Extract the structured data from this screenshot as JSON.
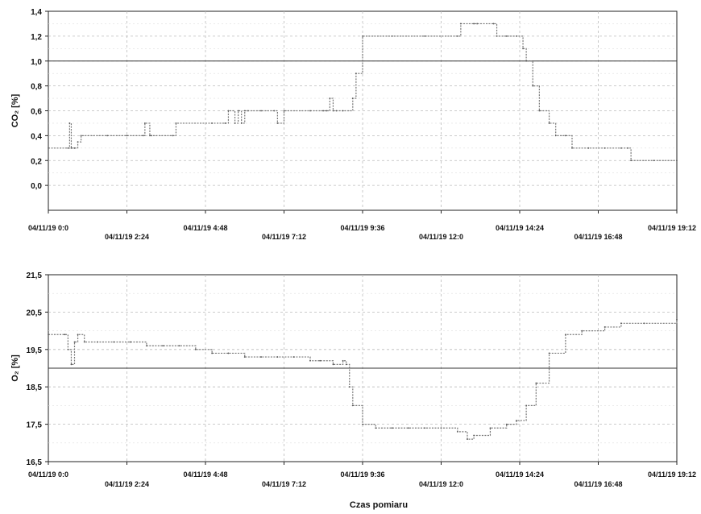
{
  "chart_data": [
    {
      "type": "line",
      "ylabel": "CO₂ [%]",
      "xlabel": "",
      "ylim": [
        -0.2,
        1.4
      ],
      "yticks": [
        "1,4",
        "1,2",
        "1,0",
        "0,8",
        "0,6",
        "0,4",
        "0,2",
        "0,0"
      ],
      "ytick_values": [
        1.4,
        1.2,
        1.0,
        0.8,
        0.6,
        0.4,
        0.2,
        0.0
      ],
      "xticks": [
        "04/11/19 0:0",
        "04/11/19 2:24",
        "04/11/19 4:48",
        "04/11/19 7:12",
        "04/11/19 9:36",
        "04/11/19 12:0",
        "04/11/19 14:24",
        "04/11/19 16:48",
        "04/11/19 19:12"
      ],
      "xlim_hours": [
        0,
        19.2
      ],
      "grid": true,
      "reference_line": 1.0,
      "series_color": "#777777",
      "x": [
        0.0,
        0.6,
        0.65,
        0.7,
        0.8,
        0.9,
        1.0,
        1.8,
        2.4,
        2.9,
        2.95,
        3.1,
        3.15,
        3.8,
        3.9,
        5.0,
        5.4,
        5.5,
        5.7,
        5.8,
        5.9,
        6.0,
        6.1,
        6.5,
        6.9,
        7.0,
        7.2,
        8.0,
        8.4,
        8.5,
        8.6,
        8.7,
        8.8,
        9.0,
        9.3,
        9.4,
        9.6,
        10.5,
        11.5,
        12.5,
        12.6,
        13.0,
        13.1,
        13.6,
        13.7,
        14.0,
        14.3,
        14.5,
        14.6,
        14.8,
        15.0,
        15.3,
        15.5,
        15.8,
        16.0,
        16.5,
        17.0,
        17.5,
        17.7,
        17.8,
        18.5,
        19.2
      ],
      "y": [
        0.3,
        0.3,
        0.5,
        0.3,
        0.3,
        0.35,
        0.4,
        0.4,
        0.4,
        0.4,
        0.5,
        0.4,
        0.4,
        0.4,
        0.5,
        0.5,
        0.5,
        0.6,
        0.5,
        0.6,
        0.5,
        0.6,
        0.6,
        0.6,
        0.6,
        0.5,
        0.6,
        0.6,
        0.6,
        0.6,
        0.7,
        0.6,
        0.6,
        0.6,
        0.7,
        0.9,
        1.2,
        1.2,
        1.2,
        1.2,
        1.3,
        1.3,
        1.3,
        1.3,
        1.2,
        1.2,
        1.2,
        1.1,
        1.0,
        0.8,
        0.6,
        0.5,
        0.4,
        0.4,
        0.3,
        0.3,
        0.3,
        0.3,
        0.3,
        0.2,
        0.2,
        0.2
      ]
    },
    {
      "type": "line",
      "ylabel": "O₂ [%]",
      "xlabel": "Czas pomiaru",
      "ylim": [
        16.5,
        21.5
      ],
      "yticks": [
        "21,5",
        "20,5",
        "19,5",
        "18,5",
        "17,5",
        "16,5"
      ],
      "ytick_values": [
        21.5,
        20.5,
        19.5,
        18.5,
        17.5,
        16.5
      ],
      "xticks": [
        "04/11/19 0:0",
        "04/11/19 2:24",
        "04/11/19 4:48",
        "04/11/19 7:12",
        "04/11/19 9:36",
        "04/11/19 12:0",
        "04/11/19 14:24",
        "04/11/19 16:48",
        "04/11/19 19:12"
      ],
      "xlim_hours": [
        0,
        19.2
      ],
      "grid": true,
      "reference_line": 19.0,
      "series_color": "#777777",
      "x": [
        0.0,
        0.5,
        0.6,
        0.7,
        0.8,
        0.9,
        1.1,
        1.5,
        2.0,
        2.5,
        3.0,
        3.5,
        4.0,
        4.5,
        5.0,
        5.5,
        6.0,
        6.5,
        7.0,
        7.5,
        8.0,
        8.3,
        8.7,
        9.0,
        9.1,
        9.2,
        9.3,
        9.6,
        10.0,
        10.5,
        11.0,
        11.5,
        12.0,
        12.5,
        12.8,
        13.0,
        13.5,
        14.0,
        14.3,
        14.6,
        14.9,
        15.3,
        15.8,
        16.3,
        17.0,
        17.5,
        18.2,
        19.2
      ],
      "y": [
        19.9,
        19.9,
        19.5,
        19.1,
        19.7,
        19.9,
        19.7,
        19.7,
        19.7,
        19.7,
        19.6,
        19.6,
        19.6,
        19.5,
        19.4,
        19.4,
        19.3,
        19.3,
        19.3,
        19.3,
        19.2,
        19.2,
        19.1,
        19.2,
        19.1,
        18.5,
        18.0,
        17.5,
        17.4,
        17.4,
        17.4,
        17.4,
        17.4,
        17.3,
        17.1,
        17.2,
        17.4,
        17.5,
        17.6,
        18.0,
        18.6,
        19.4,
        19.9,
        20.0,
        20.1,
        20.2,
        20.2,
        20.3
      ]
    }
  ]
}
